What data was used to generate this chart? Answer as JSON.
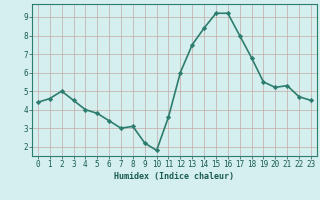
{
  "x": [
    0,
    1,
    2,
    3,
    4,
    5,
    6,
    7,
    8,
    9,
    10,
    11,
    12,
    13,
    14,
    15,
    16,
    17,
    18,
    19,
    20,
    21,
    22,
    23
  ],
  "y": [
    4.4,
    4.6,
    5.0,
    4.5,
    4.0,
    3.8,
    3.4,
    3.0,
    3.1,
    2.2,
    1.8,
    3.6,
    6.0,
    7.5,
    8.4,
    9.2,
    9.2,
    8.0,
    6.8,
    5.5,
    5.2,
    5.3,
    4.7,
    4.5
  ],
  "line_color": "#2d7d6e",
  "marker": "D",
  "marker_size": 2.2,
  "bg_color": "#d4efee",
  "grid_color_major": "#c4aaaa",
  "grid_color_minor": "#d8c0c0",
  "axis_color": "#2d7d6e",
  "xlabel": "Humidex (Indice chaleur)",
  "xlim": [
    -0.5,
    23.5
  ],
  "ylim": [
    1.5,
    9.7
  ],
  "yticks": [
    2,
    3,
    4,
    5,
    6,
    7,
    8,
    9
  ],
  "xticks": [
    0,
    1,
    2,
    3,
    4,
    5,
    6,
    7,
    8,
    9,
    10,
    11,
    12,
    13,
    14,
    15,
    16,
    17,
    18,
    19,
    20,
    21,
    22,
    23
  ],
  "font_color": "#1a5c52",
  "linewidth": 1.2,
  "xlabel_fontsize": 6.0,
  "tick_fontsize": 5.5
}
